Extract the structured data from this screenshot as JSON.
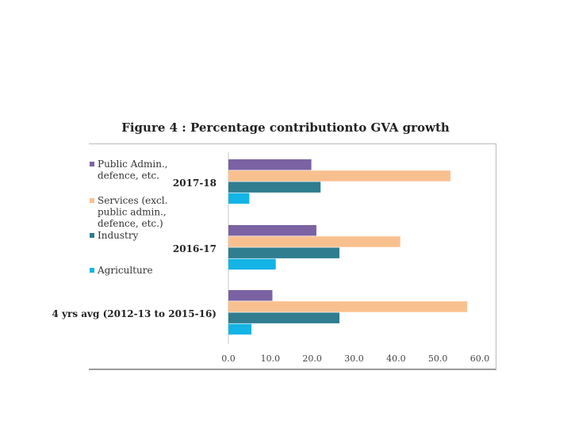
{
  "chart_data": {
    "type": "bar",
    "orientation": "horizontal",
    "title": "Figure 4 : Percentage contributionto GVA growth",
    "categories": [
      "2017-18",
      "2016-17",
      "4 yrs avg (2012-13 to 2015-16)"
    ],
    "series": [
      {
        "name": "Public Admin., defence, etc.",
        "legend_lines": [
          "Public Admin.,",
          "defence, etc."
        ],
        "color": "#7b62a3",
        "values": [
          19.8,
          21.0,
          10.5
        ]
      },
      {
        "name": "Services (excl. public admin., defence, etc.)",
        "legend_lines": [
          "Services (excl.",
          "public admin.,",
          "defence, etc.)"
        ],
        "color": "#f9c08f",
        "values": [
          53.0,
          41.0,
          57.0
        ]
      },
      {
        "name": "Industry",
        "legend_lines": [
          "Industry"
        ],
        "color": "#2f7d8f",
        "values": [
          22.0,
          26.5,
          26.5
        ]
      },
      {
        "name": "Agriculture",
        "legend_lines": [
          "Agriculture"
        ],
        "color": "#14b4e6",
        "values": [
          5.0,
          11.3,
          5.5
        ]
      }
    ],
    "xlim": [
      0,
      60
    ],
    "xticks": [
      "0.0",
      "10.0",
      "20.0",
      "30.0",
      "40.0",
      "50.0",
      "60.0"
    ],
    "legend_position": "left"
  }
}
